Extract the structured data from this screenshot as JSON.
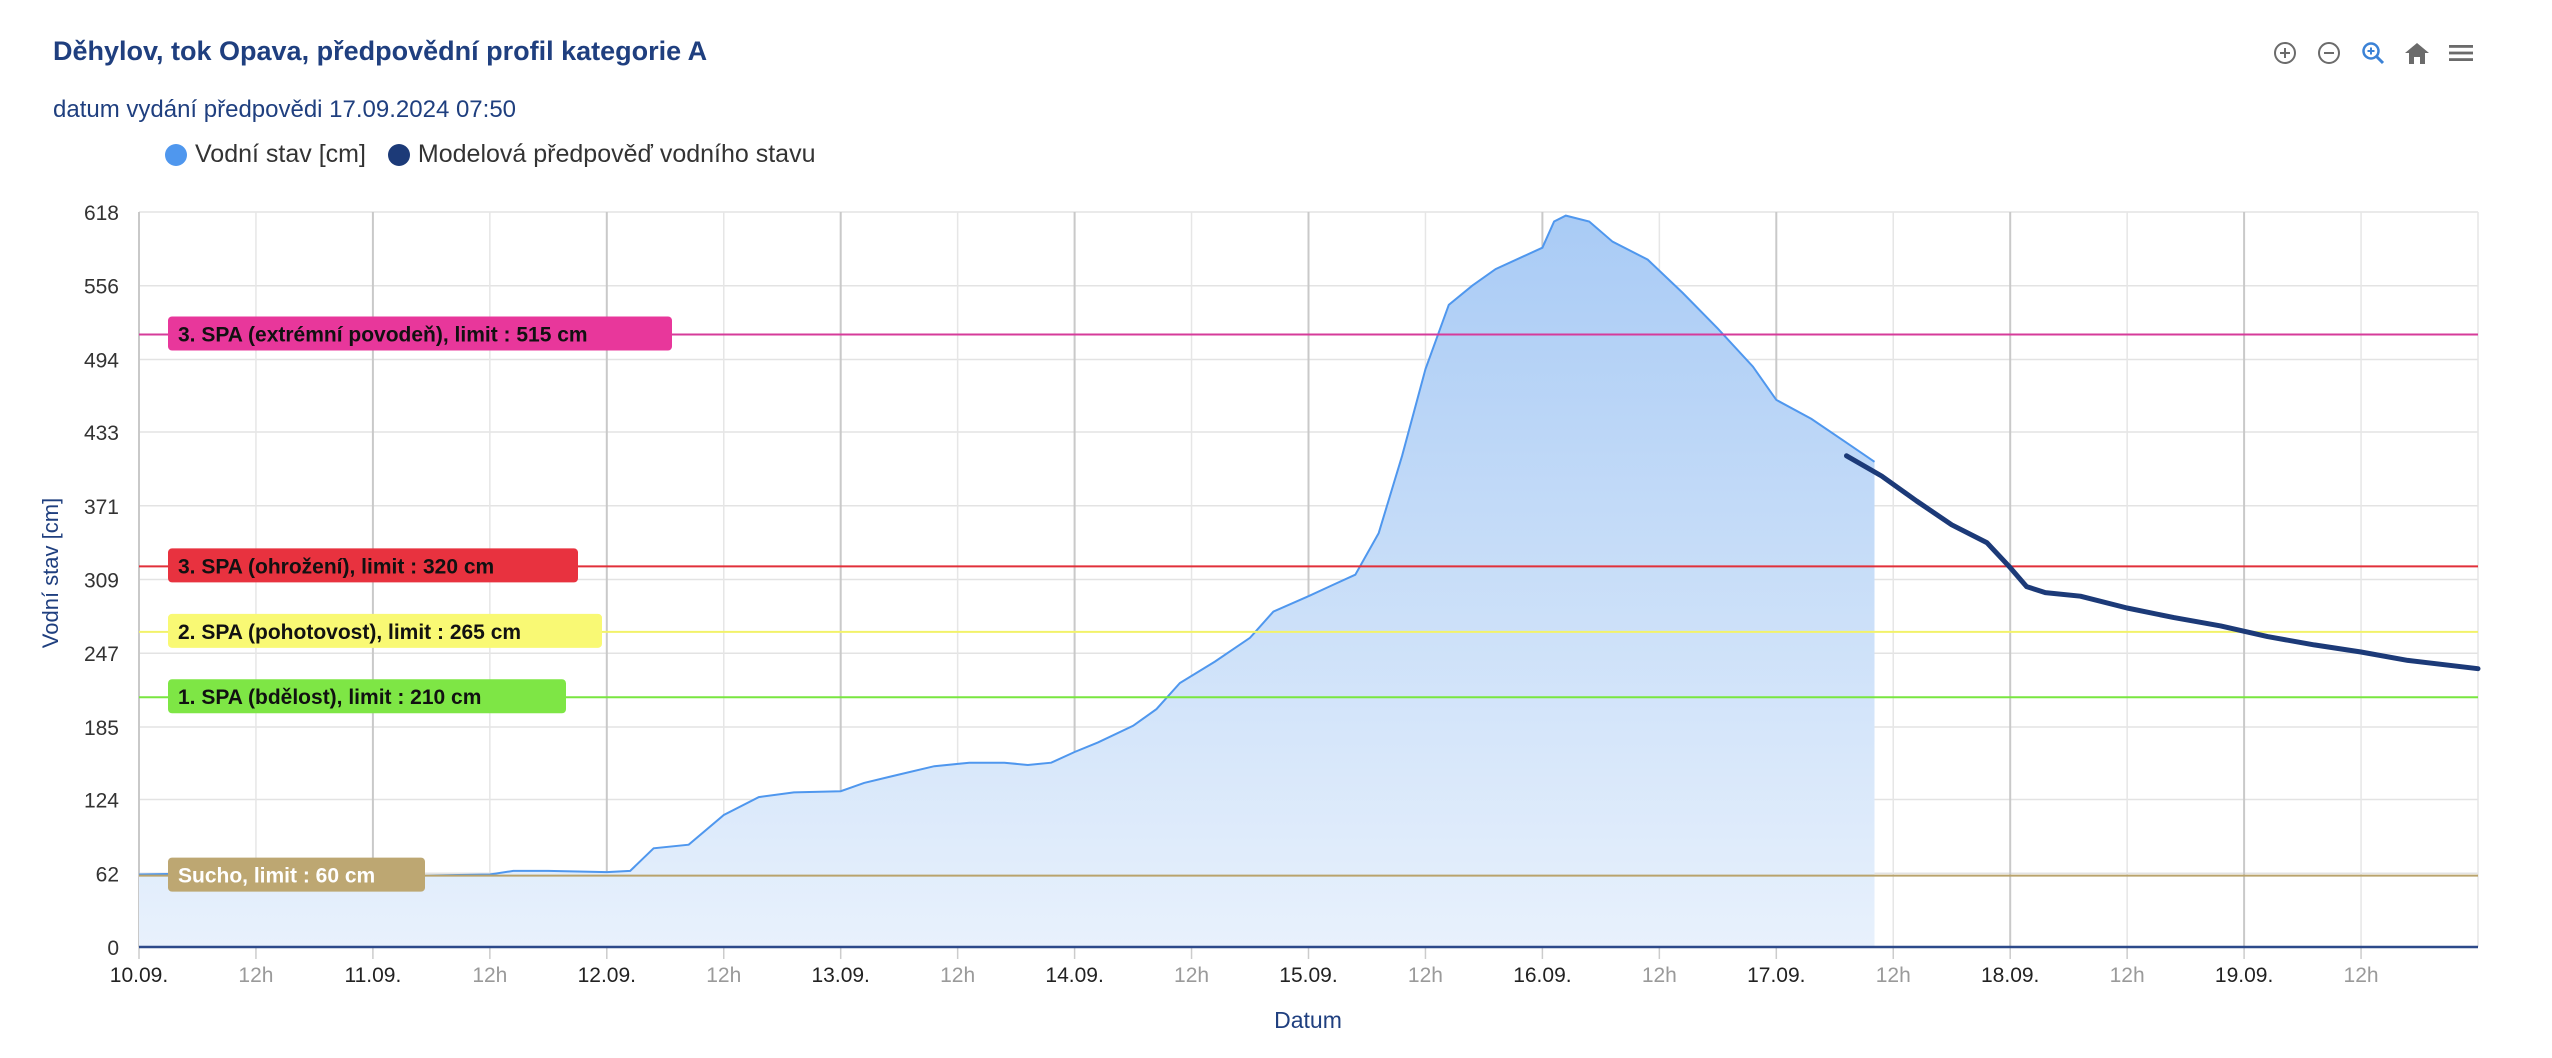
{
  "title": "Děhylov, tok Opava, předpovědní profil kategorie A",
  "subtitle": "datum vydání předpovědi 17.09.2024 07:50",
  "toolbar": {
    "icons": [
      "zoom-in-icon",
      "zoom-out-icon",
      "magnifier-icon",
      "home-icon",
      "menu-icon"
    ]
  },
  "legend": [
    {
      "label": "Vodní stav [cm]",
      "color": "#4f97ee"
    },
    {
      "label": "Modelová předpověď vodního stavu",
      "color": "#1c3a78"
    }
  ],
  "chart_data": {
    "type": "area",
    "title": "Děhylov, tok Opava, předpovědní profil kategorie A",
    "xlabel": "Datum",
    "ylabel": "Vodní stav [cm]",
    "ylim": [
      0,
      618
    ],
    "xlim": [
      0,
      10
    ],
    "yticks": [
      0,
      62,
      124,
      185,
      247,
      309,
      371,
      433,
      494,
      556,
      618
    ],
    "xticks": [
      {
        "x": 0,
        "label": "10.09.",
        "major": true
      },
      {
        "x": 0.5,
        "label": "12h",
        "major": false
      },
      {
        "x": 1,
        "label": "11.09.",
        "major": true
      },
      {
        "x": 1.5,
        "label": "12h",
        "major": false
      },
      {
        "x": 2,
        "label": "12.09.",
        "major": true
      },
      {
        "x": 2.5,
        "label": "12h",
        "major": false
      },
      {
        "x": 3,
        "label": "13.09.",
        "major": true
      },
      {
        "x": 3.5,
        "label": "12h",
        "major": false
      },
      {
        "x": 4,
        "label": "14.09.",
        "major": true
      },
      {
        "x": 4.5,
        "label": "12h",
        "major": false
      },
      {
        "x": 5,
        "label": "15.09.",
        "major": true
      },
      {
        "x": 5.5,
        "label": "12h",
        "major": false
      },
      {
        "x": 6,
        "label": "16.09.",
        "major": true
      },
      {
        "x": 6.5,
        "label": "12h",
        "major": false
      },
      {
        "x": 7,
        "label": "17.09.",
        "major": true
      },
      {
        "x": 7.5,
        "label": "12h",
        "major": false
      },
      {
        "x": 8,
        "label": "18.09.",
        "major": true
      },
      {
        "x": 8.5,
        "label": "12h",
        "major": false
      },
      {
        "x": 9,
        "label": "19.09.",
        "major": true
      },
      {
        "x": 9.5,
        "label": "12h",
        "major": false
      }
    ],
    "grid": true,
    "legend_position": "top-left",
    "series": [
      {
        "name": "Vodní stav [cm]",
        "type": "area",
        "color": "#4f97ee",
        "points": [
          [
            0.0,
            61
          ],
          [
            0.3,
            62
          ],
          [
            0.6,
            61
          ],
          [
            0.9,
            61
          ],
          [
            1.2,
            60
          ],
          [
            1.5,
            61
          ],
          [
            1.6,
            64
          ],
          [
            1.75,
            64
          ],
          [
            2.0,
            63
          ],
          [
            2.1,
            64
          ],
          [
            2.2,
            83
          ],
          [
            2.35,
            86
          ],
          [
            2.5,
            111
          ],
          [
            2.65,
            126
          ],
          [
            2.8,
            130
          ],
          [
            3.0,
            131
          ],
          [
            3.1,
            138
          ],
          [
            3.25,
            145
          ],
          [
            3.4,
            152
          ],
          [
            3.55,
            155
          ],
          [
            3.7,
            155
          ],
          [
            3.8,
            153
          ],
          [
            3.9,
            155
          ],
          [
            4.0,
            164
          ],
          [
            4.1,
            172
          ],
          [
            4.25,
            186
          ],
          [
            4.35,
            200
          ],
          [
            4.45,
            222
          ],
          [
            4.6,
            240
          ],
          [
            4.75,
            260
          ],
          [
            4.85,
            282
          ],
          [
            5.0,
            295
          ],
          [
            5.1,
            304
          ],
          [
            5.2,
            313
          ],
          [
            5.3,
            348
          ],
          [
            5.4,
            413
          ],
          [
            5.5,
            486
          ],
          [
            5.6,
            540
          ],
          [
            5.7,
            556
          ],
          [
            5.8,
            570
          ],
          [
            6.0,
            588
          ],
          [
            6.05,
            610
          ],
          [
            6.1,
            615
          ],
          [
            6.2,
            610
          ],
          [
            6.3,
            593
          ],
          [
            6.45,
            578
          ],
          [
            6.6,
            550
          ],
          [
            6.75,
            520
          ],
          [
            6.9,
            488
          ],
          [
            7.0,
            460
          ],
          [
            7.15,
            444
          ],
          [
            7.3,
            424
          ],
          [
            7.42,
            408
          ]
        ]
      },
      {
        "name": "Modelová předpověď vodního stavu",
        "type": "line",
        "color": "#1c3a78",
        "points": [
          [
            7.3,
            413
          ],
          [
            7.45,
            396
          ],
          [
            7.6,
            375
          ],
          [
            7.75,
            355
          ],
          [
            7.9,
            340
          ],
          [
            8.0,
            319
          ],
          [
            8.07,
            303
          ],
          [
            8.15,
            298
          ],
          [
            8.3,
            295
          ],
          [
            8.5,
            285
          ],
          [
            8.7,
            277
          ],
          [
            8.9,
            270
          ],
          [
            9.1,
            261
          ],
          [
            9.3,
            254
          ],
          [
            9.5,
            248
          ],
          [
            9.7,
            241
          ],
          [
            10.0,
            234
          ]
        ]
      }
    ],
    "plot_lines": [
      {
        "value": 515,
        "label": "3. SPA (extrémní povodeň), limit : 515 cm",
        "color": "#d63b9a",
        "label_bg": "#e8379b",
        "label_color": "#111111"
      },
      {
        "value": 320,
        "label": "3. SPA (ohrožení), limit : 320 cm",
        "color": "#e1303a",
        "label_bg": "#e8323f",
        "label_color": "#111111"
      },
      {
        "value": 265,
        "label": "2. SPA (pohotovost), limit : 265 cm",
        "color": "#f2f26a",
        "label_bg": "#f9f974",
        "label_color": "#111111"
      },
      {
        "value": 210,
        "label": "1. SPA (bdělost), limit : 210 cm",
        "color": "#79e640",
        "label_bg": "#7ee645",
        "label_color": "#111111"
      },
      {
        "value": 60,
        "label": "Sucho, limit : 60 cm",
        "color": "#b9a36c",
        "label_bg": "#bda772",
        "label_color": "#ffffff"
      }
    ]
  }
}
